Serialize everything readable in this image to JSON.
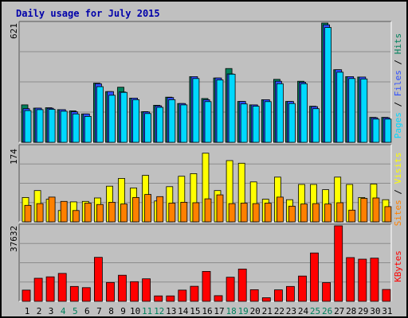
{
  "chart_data": [
    {
      "type": "bar",
      "title": "Daily usage for July 2015",
      "categories": [
        "1",
        "2",
        "3",
        "4",
        "5",
        "6",
        "7",
        "8",
        "9",
        "10",
        "11",
        "12",
        "13",
        "14",
        "15",
        "16",
        "17",
        "18",
        "19",
        "20",
        "21",
        "22",
        "23",
        "24",
        "25",
        "26",
        "27",
        "28",
        "29",
        "30",
        "31"
      ],
      "weekend_categories": [
        "4",
        "5",
        "11",
        "12",
        "18",
        "19",
        "25",
        "26"
      ],
      "ylabel": "Pages / Files / Hits",
      "ylabel_parts": [
        "Pages",
        "Files",
        "Hits"
      ],
      "y_max_label": "621",
      "ylim": [
        0,
        621
      ],
      "series": [
        {
          "name": "Hits",
          "color": "#00805c",
          "values": [
            195,
            178,
            180,
            170,
            164,
            148,
            308,
            264,
            287,
            230,
            160,
            193,
            235,
            202,
            342,
            228,
            335,
            384,
            213,
            195,
            222,
            328,
            213,
            318,
            188,
            621,
            378,
            342,
            340,
            130,
            130
          ]
        },
        {
          "name": "Files",
          "color": "#3050ff",
          "values": [
            175,
            178,
            177,
            170,
            159,
            148,
            305,
            264,
            262,
            230,
            158,
            190,
            233,
            202,
            342,
            222,
            335,
            356,
            213,
            195,
            222,
            318,
            213,
            313,
            186,
            612,
            378,
            342,
            340,
            128,
            128
          ]
        },
        {
          "name": "Pages",
          "color": "#00d8ff",
          "values": [
            165,
            170,
            172,
            162,
            148,
            135,
            290,
            245,
            260,
            222,
            150,
            182,
            222,
            195,
            332,
            212,
            325,
            355,
            200,
            188,
            212,
            305,
            202,
            305,
            175,
            598,
            365,
            332,
            330,
            121,
            121
          ]
        }
      ]
    },
    {
      "type": "bar",
      "ylabel": "Sites / Visits",
      "ylabel_parts": [
        "Sites",
        "Visits"
      ],
      "y_max_label": "174",
      "ylim": [
        0,
        174
      ],
      "series": [
        {
          "name": "Visits",
          "color": "#ffff00",
          "values": [
            56,
            72,
            52,
            26,
            46,
            47,
            55,
            82,
            100,
            78,
            107,
            48,
            81,
            105,
            111,
            158,
            72,
            141,
            135,
            92,
            52,
            103,
            51,
            86,
            86,
            74,
            103,
            86,
            56,
            87,
            51
          ]
        },
        {
          "name": "Sites",
          "color": "#ff8000",
          "values": [
            38,
            42,
            57,
            47,
            26,
            43,
            40,
            45,
            41,
            56,
            63,
            58,
            43,
            45,
            44,
            53,
            62,
            42,
            43,
            42,
            43,
            57,
            36,
            41,
            42,
            41,
            44,
            27,
            54,
            55,
            35
          ]
        }
      ]
    },
    {
      "type": "bar",
      "ylabel": "KBytes",
      "y_max_label": "37632",
      "ylim": [
        0,
        37632
      ],
      "series": [
        {
          "name": "KBytes",
          "color": "#ff0000",
          "values": [
            5600,
            11500,
            12200,
            13900,
            7400,
            6800,
            21900,
            9400,
            13000,
            9800,
            11200,
            2700,
            2700,
            5600,
            7500,
            14900,
            2800,
            12000,
            16100,
            5800,
            1800,
            5700,
            7400,
            12600,
            24100,
            9300,
            37632,
            21800,
            21000,
            21500,
            5900
          ]
        }
      ]
    }
  ]
}
